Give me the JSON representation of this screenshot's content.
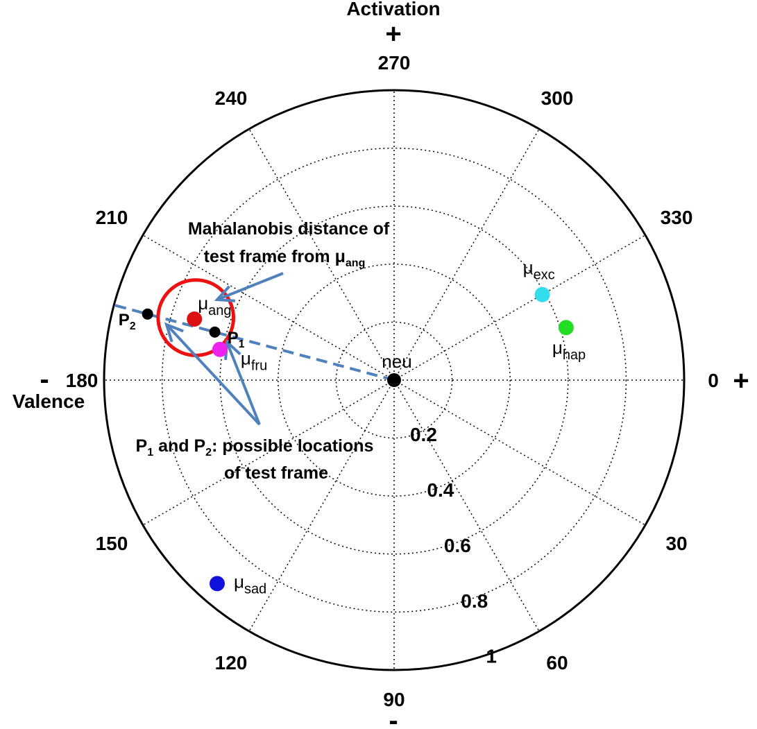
{
  "chart_data": {
    "type": "scatter",
    "coordinate_system": "polar",
    "axes": {
      "top_label": "Activation",
      "left_label": "Valence",
      "top_sign": "+",
      "bottom_sign": "-",
      "right_sign": "+",
      "left_sign": "-"
    },
    "radial_ticks": [
      "0.2",
      "0.4",
      "0.6",
      "0.8",
      "1"
    ],
    "radial_values": [
      0.2,
      0.4,
      0.6,
      0.8,
      1.0
    ],
    "angle_ticks": [
      "0",
      "30",
      "60",
      "90",
      "120",
      "150",
      "180",
      "210",
      "240",
      "270",
      "300",
      "330"
    ],
    "angle_values": [
      0,
      30,
      60,
      90,
      120,
      150,
      180,
      210,
      240,
      270,
      300,
      330
    ],
    "grid": true,
    "center_label": "neu",
    "points": [
      {
        "label": "μ",
        "sub": "exc",
        "theta": 330,
        "r": 0.59,
        "color": "#33ddee"
      },
      {
        "label": "μ",
        "sub": "hap",
        "theta": 343,
        "r": 0.62,
        "color": "#22dd22"
      },
      {
        "label": "μ",
        "sub": "ang",
        "theta": 197,
        "r": 0.72,
        "color": "#dd1111"
      },
      {
        "label": "μ",
        "sub": "fru",
        "theta": 190,
        "r": 0.61,
        "color": "#ee22ee"
      },
      {
        "label": "μ",
        "sub": "sad",
        "theta": 131,
        "r": 0.93,
        "color": "#1111dd"
      },
      {
        "label": "",
        "sub": "",
        "theta": 0,
        "r": 0.0,
        "color": "#000000"
      }
    ],
    "test_points": [
      {
        "label": "P",
        "sub": "1",
        "theta": 195,
        "r": 0.64,
        "color": "#000000"
      },
      {
        "label": "P",
        "sub": "2",
        "theta": 195,
        "r": 0.88,
        "color": "#000000"
      }
    ],
    "mahalanobis_circle": {
      "theta": 197,
      "r": 0.72,
      "radius": 0.13,
      "color": "#ee1111"
    },
    "dashed_line": {
      "theta": 195,
      "r_end": 1.0,
      "color": "#4f81bd"
    },
    "annotations": [
      {
        "name": "mahalanobis",
        "lines": [
          "Mahalanobis distance of",
          "test frame from μ"
        ],
        "sub": "ang"
      },
      {
        "name": "possible-locations",
        "line1_parts": [
          "P",
          "1",
          " and P",
          "2",
          ": possible locations"
        ],
        "line2": "of test frame"
      }
    ]
  }
}
